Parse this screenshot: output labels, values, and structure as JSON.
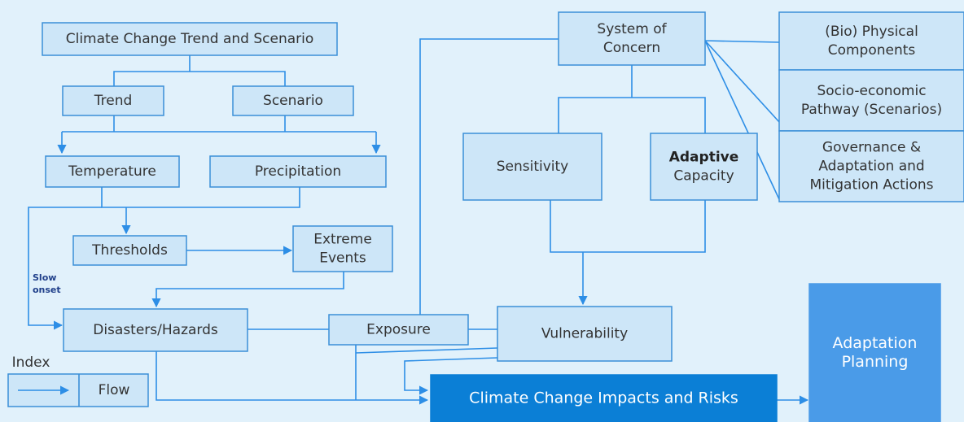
{
  "nodes": [
    {
      "lines": [
        "Climate Change Trend and Scenario"
      ]
    },
    {
      "lines": [
        "Trend"
      ]
    },
    {
      "lines": [
        "Scenario"
      ]
    },
    {
      "lines": [
        "Temperature"
      ]
    },
    {
      "lines": [
        "Precipitation"
      ]
    },
    {
      "lines": [
        "Thresholds"
      ]
    },
    {
      "lines": [
        "Extreme",
        "Events"
      ]
    },
    {
      "lines": [
        "Disasters/Hazards"
      ]
    },
    {
      "lines": [
        "Exposure"
      ]
    },
    {
      "lines": [
        "Vulnerability"
      ]
    },
    {
      "lines": [
        "System of",
        "Concern"
      ]
    },
    {
      "lines": [
        "Sensitivity"
      ]
    },
    {
      "lines": [
        "Adaptive",
        "Capacity"
      ]
    },
    {
      "lines": [
        "(Bio) Physical",
        "Components"
      ]
    },
    {
      "lines": [
        "Socio-economic",
        "Pathway (Scenarios)"
      ]
    },
    {
      "lines": [
        "Governance &",
        "Adaptation and",
        "Mitigation Actions"
      ]
    },
    {
      "lines": [
        "Climate Change Impacts and Risks"
      ]
    },
    {
      "lines": [
        "Adaptation",
        "Planning"
      ]
    }
  ],
  "annotations": {
    "slow_onset": [
      "Slow",
      "onset"
    ]
  },
  "index": {
    "title": "Index",
    "flow": "Flow"
  }
}
